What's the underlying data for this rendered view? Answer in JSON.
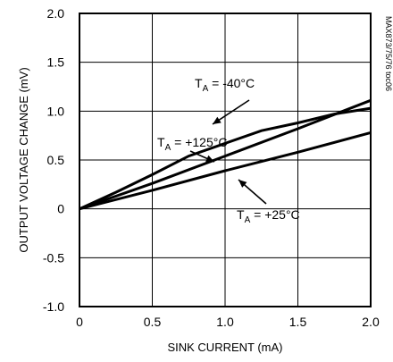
{
  "chart_data": {
    "type": "line",
    "xlabel": "SINK CURRENT (mA)",
    "ylabel": "OUTPUT VOLTAGE CHANGE (mV)",
    "xlim": [
      0,
      2.0
    ],
    "ylim": [
      -1.0,
      2.0
    ],
    "x_ticks": [
      "0",
      "0.5",
      "1.0",
      "1.5",
      "2.0"
    ],
    "y_ticks": [
      "2.0",
      "1.5",
      "1.0",
      "0.5",
      "0",
      "-0.5",
      "-1.0"
    ],
    "grid": true,
    "side_note": "MAX873/75/76 toc06",
    "series": [
      {
        "label": {
          "main": "T",
          "sub": "A",
          "rest": " = -40°C"
        },
        "x": [
          0,
          0.25,
          0.5,
          0.75,
          1.0,
          1.25,
          1.5,
          1.75,
          2.0
        ],
        "y": [
          0,
          0.17,
          0.35,
          0.54,
          0.67,
          0.8,
          0.88,
          0.97,
          1.03
        ]
      },
      {
        "label": {
          "main": "T",
          "sub": "A",
          "rest": " = +125°C"
        },
        "x": [
          0,
          0.5,
          1.0,
          1.5,
          2.0
        ],
        "y": [
          0,
          0.26,
          0.54,
          0.82,
          1.11
        ]
      },
      {
        "label": {
          "main": "T",
          "sub": "A",
          "rest": " = +25°C"
        },
        "x": [
          0,
          0.5,
          1.0,
          1.5,
          2.0
        ],
        "y": [
          0,
          0.19,
          0.39,
          0.58,
          0.78
        ]
      }
    ]
  }
}
